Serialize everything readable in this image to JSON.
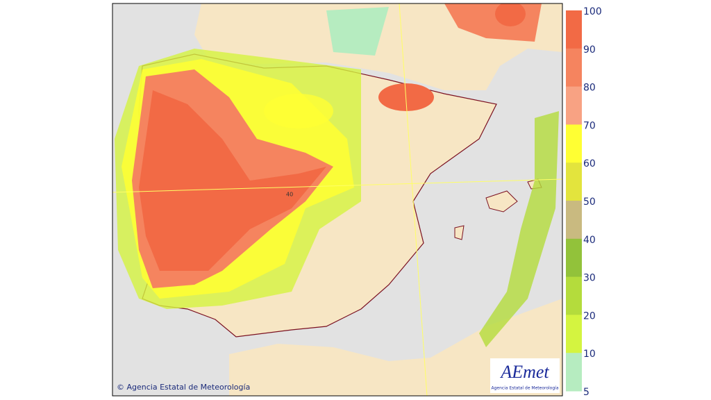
{
  "map": {
    "credit": "© Agencia Estatal de Meteorología",
    "parallel_label": "40",
    "logo": {
      "name": "AEmet",
      "subtitle": "Agencia Estatal de Meteorología"
    },
    "legend": {
      "ticks": [
        100,
        90,
        80,
        70,
        60,
        50,
        40,
        30,
        20,
        10,
        5
      ],
      "colors": [
        "#f26a45",
        "#f5845f",
        "#f8a283",
        "#ffff33",
        "#e3e43d",
        "#c9ba80",
        "#92c23a",
        "#b4dc3c",
        "#d4f440",
        "#b6ecc0"
      ]
    }
  }
}
